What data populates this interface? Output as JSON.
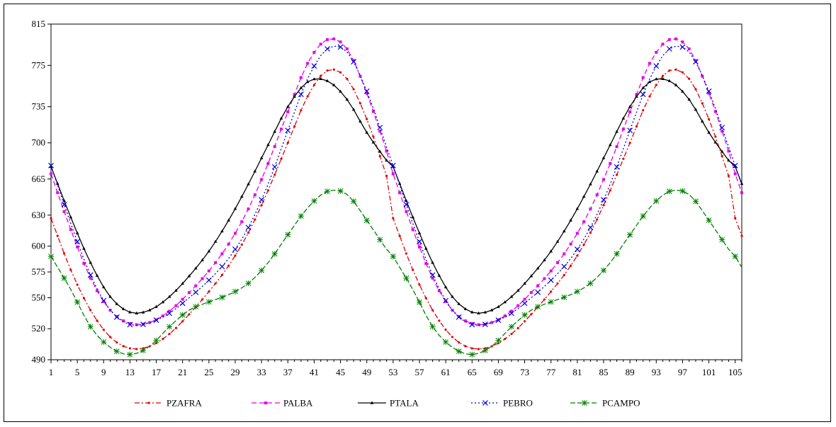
{
  "chart_data": {
    "type": "line",
    "title": "",
    "xlabel": "",
    "ylabel": "",
    "xlim": [
      1,
      106
    ],
    "ylim": [
      490,
      815
    ],
    "y_ticks": [
      490,
      520,
      550,
      575,
      600,
      630,
      665,
      700,
      735,
      775,
      815
    ],
    "x_ticks": [
      1,
      5,
      9,
      13,
      17,
      21,
      25,
      29,
      33,
      37,
      41,
      45,
      49,
      53,
      57,
      61,
      65,
      69,
      73,
      77,
      81,
      85,
      89,
      93,
      97,
      101,
      105
    ],
    "grid": false,
    "legend_position": "bottom",
    "period": 52,
    "keypoints_x": [
      1,
      4,
      7,
      10,
      13,
      16,
      19,
      22,
      25,
      28,
      31,
      34,
      37,
      40,
      43,
      46,
      49,
      52,
      53
    ],
    "series": [
      {
        "name": "PZAFRA",
        "color": "#e00000",
        "dash": "7,3,2,3",
        "marker": "dot",
        "keypoints_y": [
          627,
          577,
          538,
          512,
          501,
          503,
          515,
          534,
          556,
          581,
          613,
          654,
          700,
          745,
          770,
          762,
          723,
          668,
          648
        ]
      },
      {
        "name": "PALBA",
        "color": "#e600e6",
        "dash": "7,4",
        "marker": "square",
        "keypoints_y": [
          670,
          616,
          569,
          538,
          525,
          526,
          537,
          555,
          576,
          602,
          636,
          680,
          730,
          777,
          800,
          791,
          748,
          692,
          672
        ]
      },
      {
        "name": "PTALA",
        "color": "#000000",
        "dash": "",
        "marker": "triangle",
        "keypoints_y": [
          677,
          628,
          584,
          551,
          536,
          538,
          551,
          571,
          595,
          625,
          660,
          698,
          735,
          759,
          760,
          742,
          710,
          683,
          676
        ]
      },
      {
        "name": "PEBRO",
        "color": "#0000dd",
        "dash": "2,3",
        "marker": "x",
        "keypoints_y": [
          678,
          622,
          572,
          538,
          524,
          526,
          535,
          550,
          567,
          588,
          618,
          660,
          712,
          762,
          791,
          788,
          750,
          696,
          676
        ]
      },
      {
        "name": "PCAMPO",
        "color": "#008000",
        "dash": "7,3",
        "marker": "star",
        "keypoints_y": [
          590,
          558,
          522,
          502,
          495,
          503,
          522,
          538,
          546,
          553,
          564,
          584,
          611,
          637,
          653,
          650,
          625,
          597,
          590
        ]
      }
    ]
  }
}
